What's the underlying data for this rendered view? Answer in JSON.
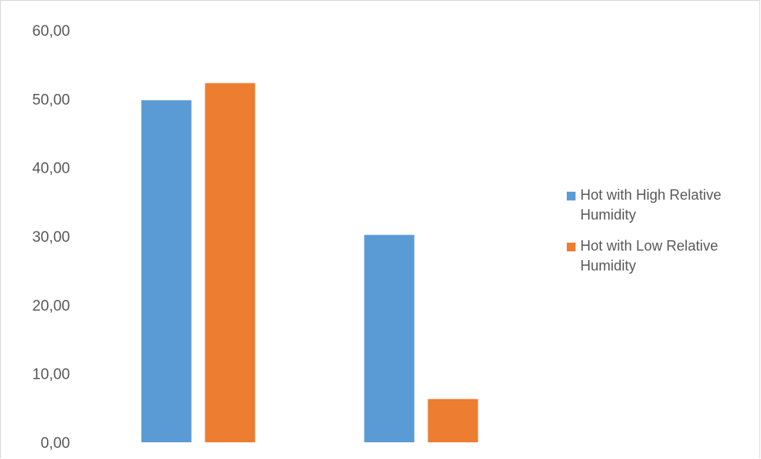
{
  "chart_data": {
    "type": "bar",
    "categories": [
      "",
      ""
    ],
    "series": [
      {
        "name": "Hot with High Relative Humidity",
        "color": "#5b9bd5",
        "values": [
          49.8,
          30.2
        ]
      },
      {
        "name": "Hot with Low Relative Humidity",
        "color": "#ed7d31",
        "values": [
          52.3,
          6.3
        ]
      }
    ],
    "title": "",
    "xlabel": "",
    "ylabel": "",
    "ylim": [
      0,
      60
    ],
    "yticks": [
      "0,00",
      "10,00",
      "20,00",
      "30,00",
      "40,00",
      "50,00",
      "60,00"
    ],
    "grid": false,
    "legend_position": "right"
  }
}
